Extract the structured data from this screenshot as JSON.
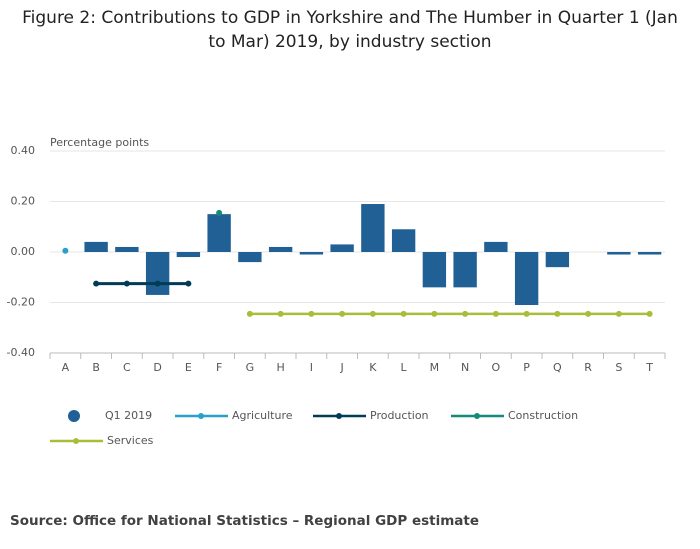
{
  "chart_data": {
    "type": "bar",
    "title": "Figure 2: Contributions to GDP in Yorkshire and The Humber in Quarter 1 (Jan to Mar) 2019, by industry section",
    "ylabel": "Percentage points",
    "source": "Source: Office for National Statistics – Regional GDP estimate",
    "categories": [
      "A",
      "B",
      "C",
      "D",
      "E",
      "F",
      "G",
      "H",
      "I",
      "J",
      "K",
      "L",
      "M",
      "N",
      "O",
      "P",
      "Q",
      "R",
      "S",
      "T"
    ],
    "ylim": [
      -0.4,
      0.4
    ],
    "yticks": [
      {
        "value": 0.4,
        "label": "0.40"
      },
      {
        "value": 0.2,
        "label": "0.20"
      },
      {
        "value": 0,
        "label": "0.00"
      },
      {
        "value": -0.2,
        "label": "-0.20"
      },
      {
        "value": -0.4,
        "label": "-0.40"
      }
    ],
    "grid": true,
    "series": [
      {
        "name": "Q1 2019",
        "type": "bar",
        "color": "#206095",
        "values": [
          0,
          0.04,
          0.02,
          -0.17,
          -0.02,
          0.15,
          -0.04,
          0.02,
          -0.01,
          0.03,
          0.19,
          0.09,
          -0.14,
          -0.14,
          0.04,
          -0.21,
          -0.06,
          0,
          -0.01,
          -0.01
        ]
      },
      {
        "name": "Agriculture",
        "type": "line",
        "color": "#27a0cc",
        "values": [
          0.005,
          null,
          null,
          null,
          null,
          null,
          null,
          null,
          null,
          null,
          null,
          null,
          null,
          null,
          null,
          null,
          null,
          null,
          null,
          null
        ]
      },
      {
        "name": "Production",
        "type": "line",
        "color": "#003c57",
        "values": [
          null,
          -0.125,
          -0.125,
          -0.125,
          -0.125,
          null,
          null,
          null,
          null,
          null,
          null,
          null,
          null,
          null,
          null,
          null,
          null,
          null,
          null,
          null
        ]
      },
      {
        "name": "Construction",
        "type": "line",
        "color": "#118c7b",
        "values": [
          null,
          null,
          null,
          null,
          null,
          0.155,
          null,
          null,
          null,
          null,
          null,
          null,
          null,
          null,
          null,
          null,
          null,
          null,
          null,
          null
        ]
      },
      {
        "name": "Services",
        "type": "line",
        "color": "#a8bd3a",
        "values": [
          null,
          null,
          null,
          null,
          null,
          null,
          -0.245,
          -0.245,
          -0.245,
          -0.245,
          -0.245,
          -0.245,
          -0.245,
          -0.245,
          -0.245,
          -0.245,
          -0.245,
          -0.245,
          -0.245,
          -0.245
        ]
      }
    ]
  }
}
